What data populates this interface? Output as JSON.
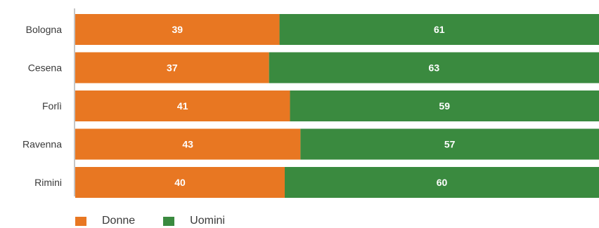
{
  "chart_data": {
    "type": "bar",
    "orientation": "horizontal",
    "stacked": true,
    "categories": [
      "Bologna",
      "Cesena",
      "Forlì",
      "Ravenna",
      "Rimini"
    ],
    "series": [
      {
        "name": "Donne",
        "color": "#E87722",
        "values": [
          39,
          37,
          41,
          43,
          40
        ]
      },
      {
        "name": "Uomini",
        "color": "#3A8A3F",
        "values": [
          61,
          63,
          59,
          57,
          60
        ]
      }
    ],
    "xlim": [
      0,
      100
    ],
    "grid": false,
    "legend": "bottom-left"
  }
}
